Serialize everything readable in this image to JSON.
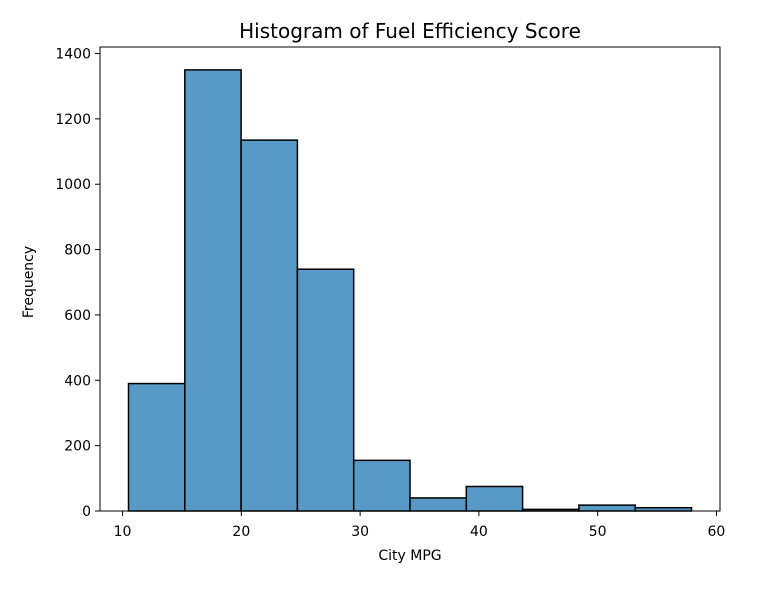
{
  "chart_data": {
    "type": "bar",
    "title": "Histogram of Fuel Efficiency Score",
    "xlabel": "City MPG",
    "ylabel": "Frequency",
    "bin_edges": [
      10.5,
      15.24,
      19.98,
      24.72,
      29.46,
      34.2,
      38.94,
      43.68,
      48.42,
      53.16,
      57.9
    ],
    "values": [
      390,
      1350,
      1135,
      740,
      155,
      40,
      75,
      5,
      18,
      10
    ],
    "xlim": [
      8.1,
      60.3
    ],
    "ylim": [
      0,
      1420
    ],
    "xticks": [
      10,
      20,
      30,
      40,
      50,
      60
    ],
    "yticks": [
      0,
      200,
      400,
      600,
      800,
      1000,
      1200,
      1400
    ],
    "colors": {
      "bar_fill": "#5799c7",
      "bar_edge": "#000000",
      "axes": "#000000",
      "background": "#ffffff"
    },
    "grid": false,
    "legend": "none"
  }
}
